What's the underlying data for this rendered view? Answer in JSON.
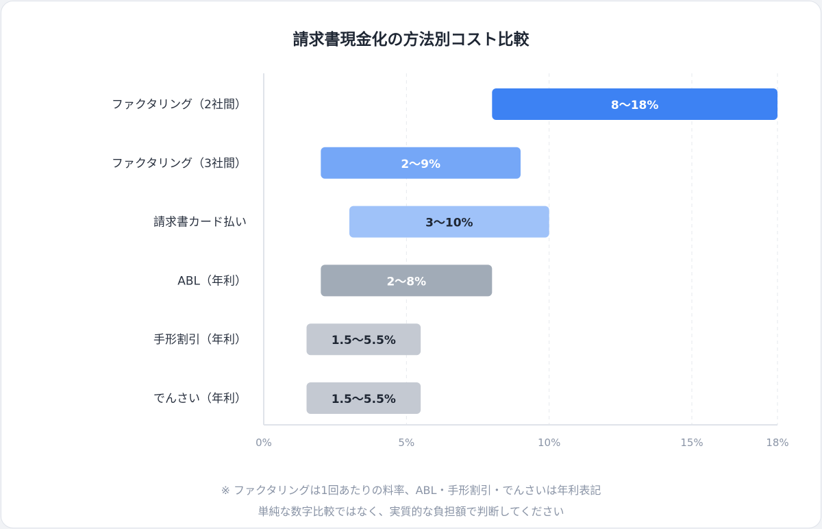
{
  "chart_data": {
    "type": "bar",
    "subtype": "range",
    "orientation": "horizontal",
    "title": "請求書現金化の方法別コスト比較",
    "categories": [
      "ファクタリング（2社間）",
      "ファクタリング（3社間）",
      "請求書カード払い",
      "ABL（年利）",
      "手形割引（年利）",
      "でんさい（年利）"
    ],
    "ranges": [
      [
        8,
        18
      ],
      [
        2,
        9
      ],
      [
        3,
        10
      ],
      [
        2,
        8
      ],
      [
        1.5,
        5.5
      ],
      [
        1.5,
        5.5
      ]
    ],
    "data_labels": [
      "8〜18%",
      "2〜9%",
      "3〜10%",
      "2〜8%",
      "1.5〜5.5%",
      "1.5〜5.5%"
    ],
    "colors": [
      "#3d82f3",
      "#75a7f7",
      "#9fc2f9",
      "#a1abb7",
      "#c4c9d2",
      "#c4c9d2"
    ],
    "label_colors": [
      "#ffffff",
      "#ffffff",
      "#1e2633",
      "#ffffff",
      "#1e2633",
      "#1e2633"
    ],
    "xticks": [
      0,
      5,
      10,
      15,
      18
    ],
    "xtick_labels": [
      "0%",
      "5%",
      "10%",
      "15%",
      "18%"
    ],
    "xlim": [
      0,
      18
    ],
    "grid": "vertical-dashed",
    "xlabel": "",
    "ylabel": ""
  },
  "notes": [
    "※ ファクタリングは1回あたりの料率、ABL・手形割引・でんさいは年利表記",
    "単純な数字比較ではなく、実質的な負担額で判断してください"
  ]
}
